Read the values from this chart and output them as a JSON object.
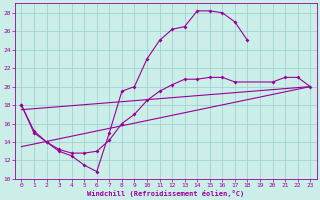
{
  "xlabel": "Windchill (Refroidissement éolien,°C)",
  "bg_color": "#cceee8",
  "grid_color": "#99cccc",
  "line_color": "#990099",
  "xlim": [
    -0.5,
    23.5
  ],
  "ylim": [
    10,
    29
  ],
  "xticks": [
    0,
    1,
    2,
    3,
    4,
    5,
    6,
    7,
    8,
    9,
    10,
    11,
    12,
    13,
    14,
    15,
    16,
    17,
    18,
    19,
    20,
    21,
    22,
    23
  ],
  "yticks": [
    10,
    12,
    14,
    16,
    18,
    20,
    22,
    24,
    26,
    28
  ],
  "line1_x": [
    0,
    1,
    2,
    3,
    4,
    5,
    6,
    7,
    8,
    9,
    10,
    11,
    12,
    13,
    14,
    15,
    16,
    17,
    18
  ],
  "line1_y": [
    18.0,
    15.0,
    14.0,
    13.0,
    12.5,
    11.5,
    10.8,
    15.0,
    19.5,
    20.0,
    23.0,
    25.0,
    26.2,
    26.5,
    28.2,
    28.2,
    28.0,
    27.0,
    25.0
  ],
  "line2_x": [
    0,
    1,
    2,
    3,
    4,
    5,
    6,
    7,
    8,
    9,
    10,
    11,
    12,
    13,
    14,
    15,
    16,
    17,
    20,
    21,
    22,
    23
  ],
  "line2_y": [
    18.0,
    15.2,
    14.0,
    13.2,
    12.8,
    12.8,
    13.0,
    14.2,
    16.0,
    17.0,
    18.5,
    19.5,
    20.2,
    20.8,
    20.8,
    21.0,
    21.0,
    20.5,
    20.5,
    21.0,
    21.0,
    20.0
  ],
  "line3_x": [
    0,
    23
  ],
  "line3_y": [
    13.5,
    20.0
  ],
  "line4_x": [
    0,
    23
  ],
  "line4_y": [
    17.5,
    20.0
  ]
}
